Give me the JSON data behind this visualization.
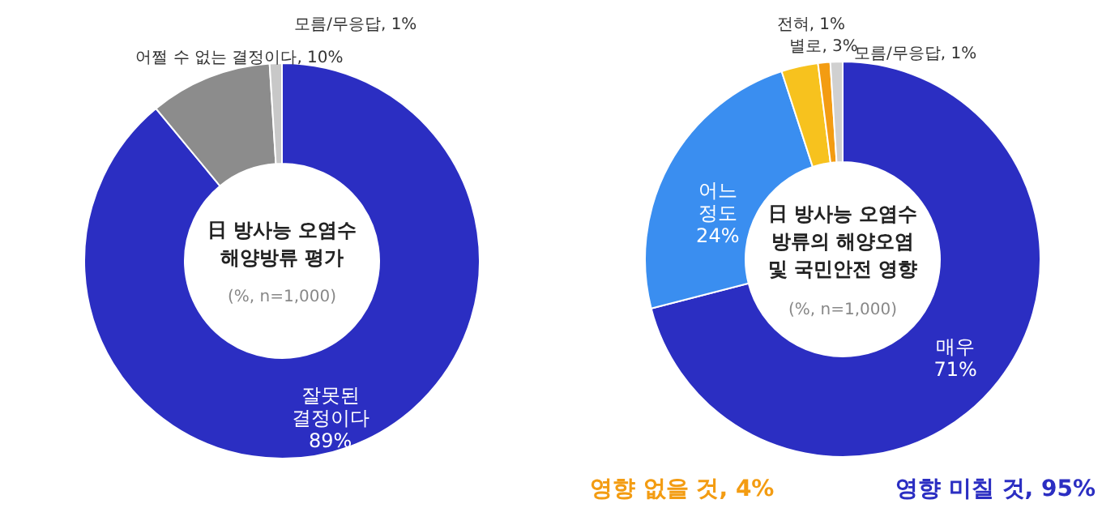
{
  "chart_data": [
    {
      "type": "donut",
      "title": "日 방사능 오염수 해양방류 평가",
      "categories": [
        "잘못된 결정이다",
        "어쩔 수 없는 결정이다",
        "모름/무응답"
      ],
      "values": [
        89,
        10,
        1
      ],
      "colors": [
        "#2b2ec2",
        "#8c8c8c",
        "#c8c8c8"
      ],
      "value_labels": [
        "89%",
        "10%",
        "1%"
      ],
      "annotations": [
        "(%, n=1,000)"
      ]
    },
    {
      "type": "donut",
      "title": "日 방사능 오염수 방류의 해양오염 및 국민안전 영향",
      "categories": [
        "매우",
        "어느 정도",
        "별로",
        "전혀",
        "모름/무응답"
      ],
      "values": [
        71,
        24,
        3,
        1,
        1
      ],
      "colors": [
        "#2b2ec2",
        "#3a8ef0",
        "#f7c21e",
        "#f39c12",
        "#d0d0d0"
      ],
      "value_labels": [
        "71%",
        "24%",
        "3%",
        "1%",
        "1%"
      ],
      "annotations": [
        "(%, n=1,000)",
        "영향 미칠 것, 95%",
        "영향 없을 것, 4%"
      ]
    }
  ]
}
